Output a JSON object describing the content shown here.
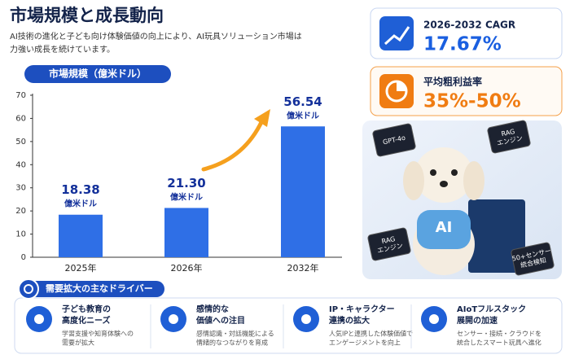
{
  "header": {
    "title": "市場規模と成長動向",
    "subtitle": [
      "AI技術の進化と子ども向け体験価値の向上により、AI玩具ソリューション市場は",
      "力強い成長を続けています。"
    ]
  },
  "chart_data": {
    "type": "bar",
    "title": "市場規模（億米ドル）",
    "categories": [
      "2025年",
      "2026年",
      "2032年"
    ],
    "values": [
      18.38,
      21.3,
      56.54
    ],
    "value_labels": [
      "18.38",
      "21.30",
      "56.54"
    ],
    "unit": "億米ドル",
    "color": "#2f6fe6",
    "ylim": [
      0,
      70
    ],
    "yticks": [
      0,
      10,
      20,
      30,
      40,
      50,
      60,
      70
    ],
    "grid": false
  },
  "metrics": [
    {
      "label": "2026-2032 CAGR",
      "value": "17.67%"
    },
    {
      "label": "平均粗利益率",
      "value": "35%-50%"
    }
  ],
  "image": {
    "chips": [
      [
        "GPT-4o"
      ],
      [
        "RAG",
        "エンジン"
      ],
      [
        "RAG",
        "エンジン"
      ],
      [
        "50+センサー",
        "統合検知"
      ]
    ],
    "shirt": "AI"
  },
  "drivers": {
    "title": "需要拡大の主なドライバー",
    "items": [
      {
        "title": [
          "子ども教育の",
          "高度化ニーズ"
        ],
        "description": [
          "学習支援や知育体験への",
          "需要が拡大"
        ]
      },
      {
        "title": [
          "感情的な",
          "価値への注目"
        ],
        "description": [
          "感情認識・対話機能による",
          "情緒的なつながりを育成"
        ]
      },
      {
        "title": [
          "IP・キャラクター",
          "連携の拡大"
        ],
        "description": [
          "人気IPと連携した体験価値で",
          "エンゲージメントを向上"
        ]
      },
      {
        "title": [
          "AIoTフルスタック",
          "展開の加速"
        ],
        "description": [
          "センサー・接続・クラウドを",
          "統合したスマート玩具へ進化"
        ]
      }
    ]
  }
}
